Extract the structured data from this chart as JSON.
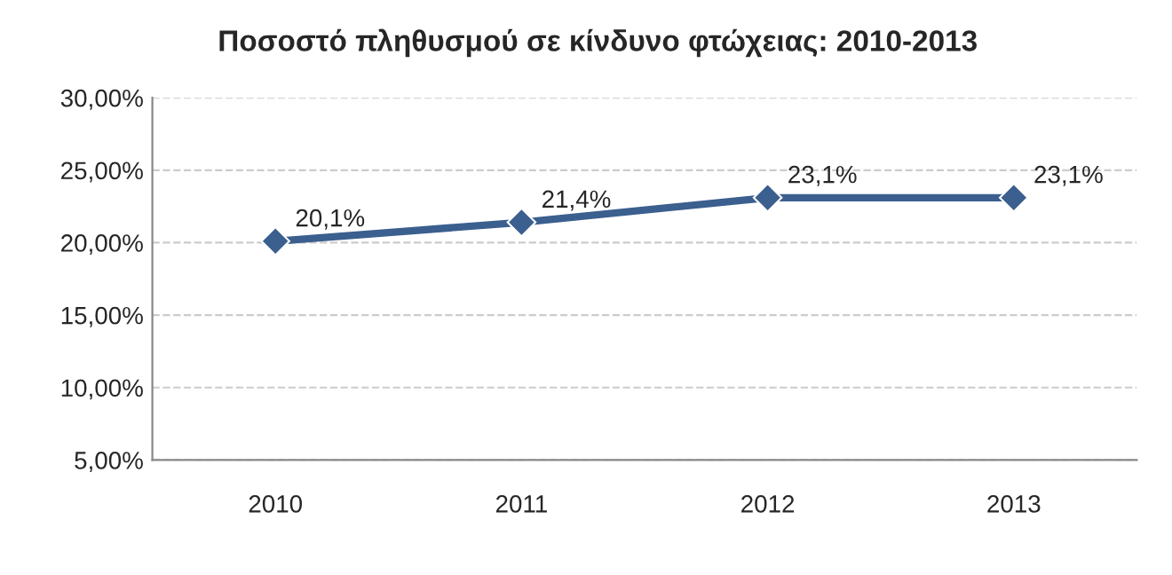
{
  "chart_data": {
    "type": "line",
    "title": "Ποσοστό πληθυσμού σε κίνδυνο φτώχειας: 2010-2013",
    "categories": [
      "2010",
      "2011",
      "2012",
      "2013"
    ],
    "series": [
      {
        "color": "#3b5f8e",
        "values": [
          20.1,
          21.4,
          23.1,
          23.1
        ],
        "value_labels": [
          "20,1%",
          "21,4%",
          "23,1%",
          "23,1%"
        ]
      }
    ],
    "ylim": [
      5,
      30
    ],
    "yticks": [
      {
        "value": 5,
        "label": "5,00%"
      },
      {
        "value": 10,
        "label": "10,00%"
      },
      {
        "value": 15,
        "label": "15,00%"
      },
      {
        "value": 20,
        "label": "20,00%"
      },
      {
        "value": 25,
        "label": "25,00%"
      },
      {
        "value": 30,
        "label": "30,00%"
      }
    ],
    "grid": "y",
    "marker": "diamond",
    "line_style": "solid",
    "legend": false
  }
}
